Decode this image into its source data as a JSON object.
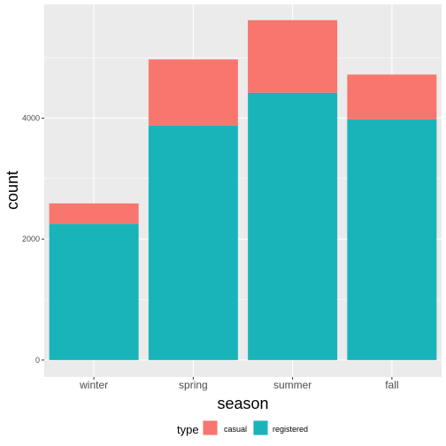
{
  "chart_data": {
    "type": "bar",
    "stacked": true,
    "categories": [
      "winter",
      "spring",
      "summer",
      "fall"
    ],
    "series": [
      {
        "name": "casual",
        "values": [
          340,
          1090,
          1200,
          740
        ],
        "color": "#F8766D"
      },
      {
        "name": "registered",
        "values": [
          2250,
          3880,
          4420,
          3980
        ],
        "color": "#19B4BA"
      }
    ],
    "xlabel": "season",
    "ylabel": "count",
    "yticks": [
      0,
      2000,
      4000
    ],
    "ylim": [
      -280,
      5880
    ],
    "grid": true,
    "legend": {
      "title": "type",
      "position": "bottom"
    },
    "panel_color": "#EBEBEB"
  }
}
